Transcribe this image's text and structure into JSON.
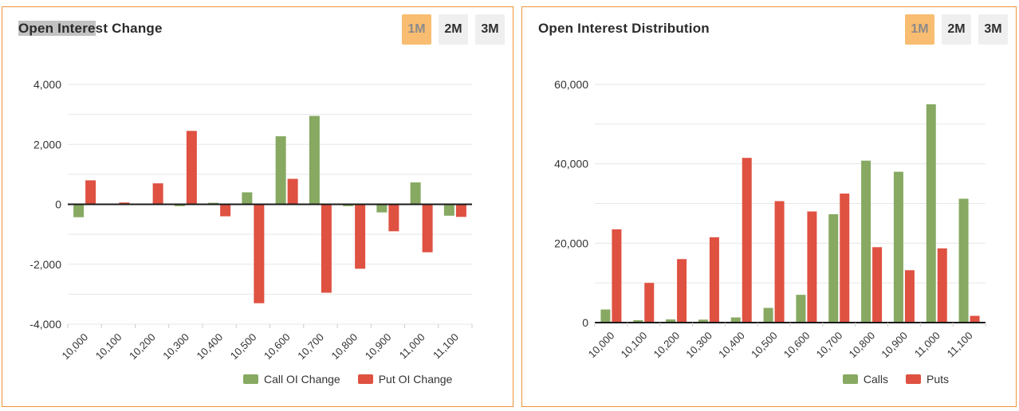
{
  "colors": {
    "call_green": "#87a962",
    "put_red": "#df5141",
    "panel_border_orange": "#ed9438",
    "active_button_bg": "#f8bd70",
    "active_button_text": "#8b8b8b",
    "inactive_button_bg": "#efefef",
    "gridline": "#e7e7e7",
    "zero_axis": "#1a1a1a",
    "axis_text": "#333333",
    "title_selection_highlight": "#c2c2c2"
  },
  "left_panel": {
    "title": "Open Interest Change",
    "title_selected": "Open Intere",
    "title_rest": "st Change",
    "buttons": [
      {
        "label": "1M",
        "active": true
      },
      {
        "label": "2M",
        "active": false
      },
      {
        "label": "3M",
        "active": false
      }
    ],
    "legend": [
      {
        "label": "Call OI Change",
        "color": "#87a962"
      },
      {
        "label": "Put OI Change",
        "color": "#df5141"
      }
    ]
  },
  "right_panel": {
    "title": "Open Interest Distribution",
    "buttons": [
      {
        "label": "1M",
        "active": true
      },
      {
        "label": "2M",
        "active": false
      },
      {
        "label": "3M",
        "active": false
      }
    ],
    "legend": [
      {
        "label": "Calls",
        "color": "#87a962"
      },
      {
        "label": "Puts",
        "color": "#df5141"
      }
    ]
  },
  "chart_data": [
    {
      "type": "bar",
      "title": "Open Interest Change",
      "xlabel": "",
      "ylabel": "",
      "categories": [
        "10,000",
        "10,100",
        "10,200",
        "10,300",
        "10,400",
        "10,500",
        "10,600",
        "10,700",
        "10,800",
        "10,900",
        "11,000",
        "11,100"
      ],
      "series": [
        {
          "name": "Call OI Change",
          "color": "#87a962",
          "values": [
            -430,
            0,
            0,
            -60,
            50,
            400,
            2270,
            2950,
            -60,
            -270,
            730,
            -380
          ]
        },
        {
          "name": "Put OI Change",
          "color": "#df5141",
          "values": [
            800,
            60,
            700,
            2450,
            -400,
            -3300,
            850,
            -2950,
            -2150,
            -900,
            -1600,
            -420
          ]
        }
      ],
      "ylim": [
        -4000,
        4000
      ],
      "ytick_interval": 1000,
      "ylabel_interval": 2000,
      "grid": true,
      "legend_position": "bottom"
    },
    {
      "type": "bar",
      "title": "Open Interest Distribution",
      "xlabel": "",
      "ylabel": "",
      "categories": [
        "10,000",
        "10,100",
        "10,200",
        "10,300",
        "10,400",
        "10,500",
        "10,600",
        "10,700",
        "10,800",
        "10,900",
        "11,000",
        "11,100"
      ],
      "series": [
        {
          "name": "Calls",
          "color": "#87a962",
          "values": [
            3300,
            600,
            800,
            750,
            1300,
            3700,
            7000,
            27300,
            40800,
            38000,
            55000,
            31200
          ]
        },
        {
          "name": "Puts",
          "color": "#df5141",
          "values": [
            23500,
            10000,
            16000,
            21500,
            41500,
            30600,
            28000,
            32500,
            19000,
            13200,
            18700,
            1700
          ]
        }
      ],
      "ylim": [
        0,
        60000
      ],
      "ytick_interval": 10000,
      "ylabel_interval": 20000,
      "grid": true,
      "legend_position": "bottom-right"
    }
  ]
}
